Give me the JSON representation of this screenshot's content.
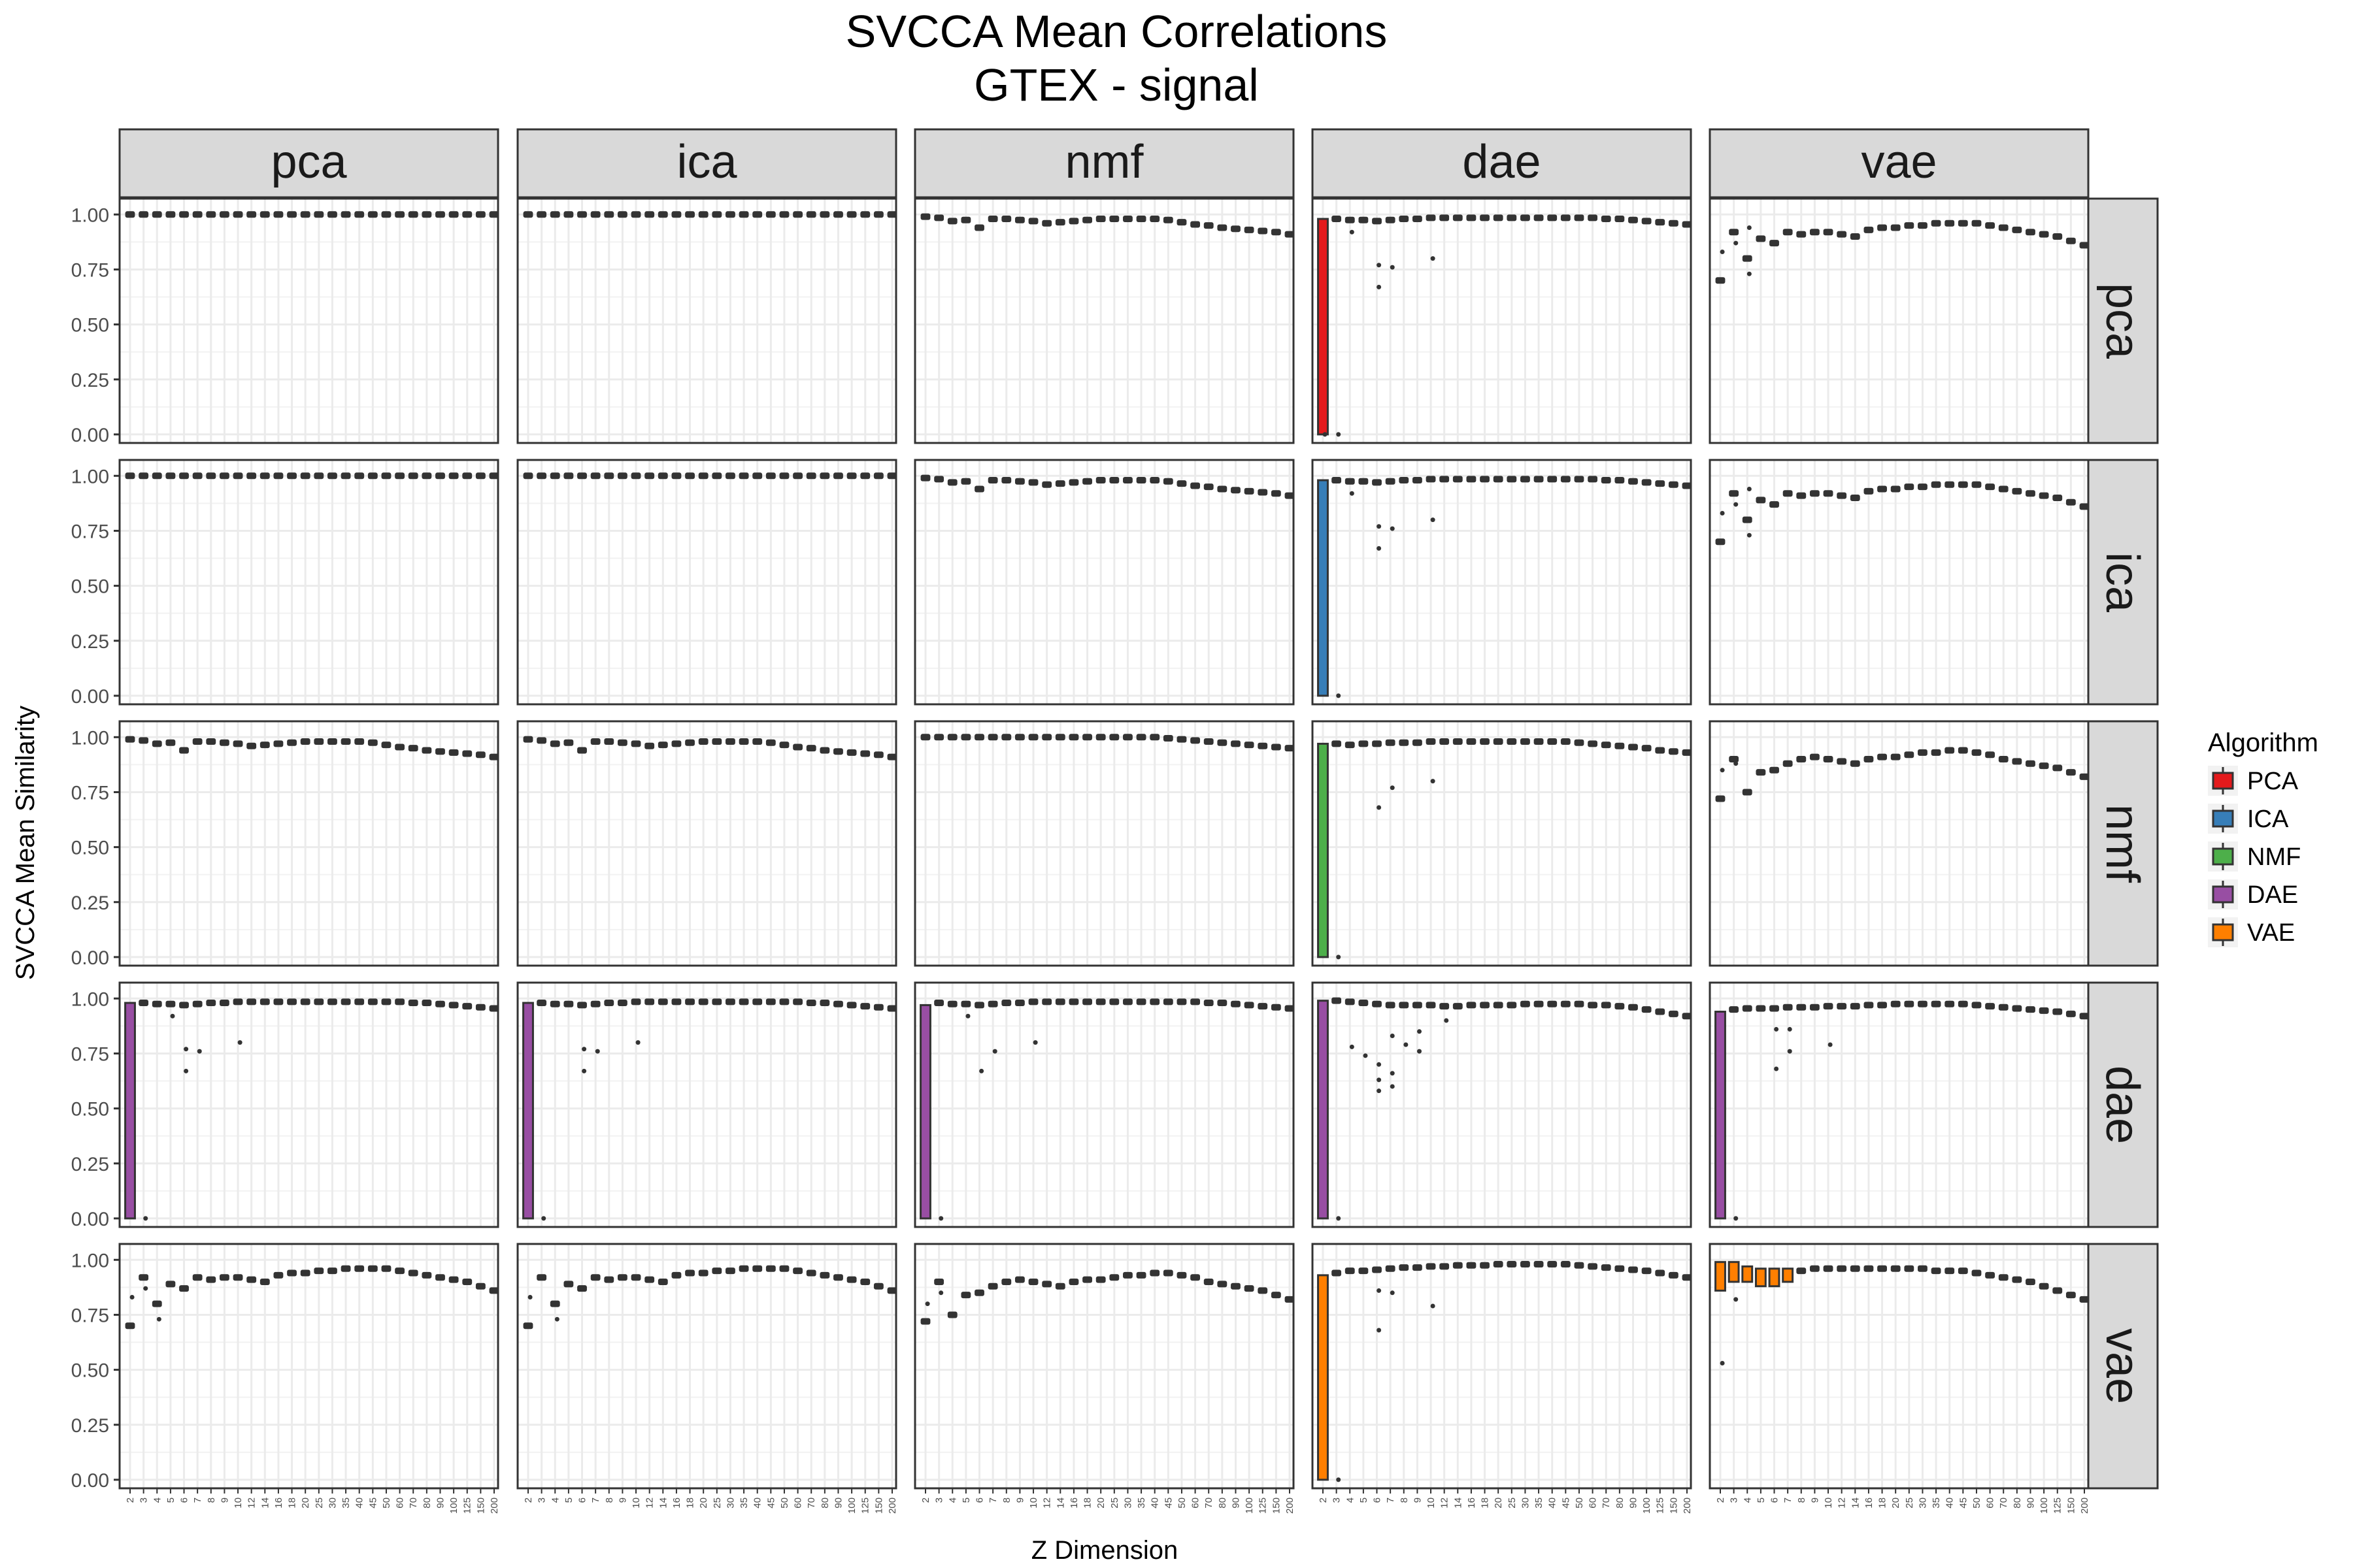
{
  "chart_data": {
    "type": "boxplot-facet-grid",
    "title": "SVCCA Mean Correlations",
    "subtitle": "GTEX - signal",
    "xlabel": "Z Dimension",
    "ylabel": "SVCCA Mean Similarity",
    "ylim": [
      0,
      1.0
    ],
    "y_ticks": [
      "0.00",
      "0.25",
      "0.50",
      "0.75",
      "1.00"
    ],
    "x_categories": [
      "2",
      "3",
      "4",
      "5",
      "6",
      "7",
      "8",
      "9",
      "10",
      "12",
      "14",
      "16",
      "18",
      "20",
      "25",
      "30",
      "35",
      "40",
      "45",
      "50",
      "60",
      "70",
      "80",
      "90",
      "100",
      "125",
      "150",
      "200"
    ],
    "facet_columns": [
      "pca",
      "ica",
      "nmf",
      "dae",
      "vae"
    ],
    "facet_rows": [
      "pca",
      "ica",
      "nmf",
      "dae",
      "vae"
    ],
    "grid": true,
    "legend": {
      "title": "Algorithm",
      "position": "right",
      "items": [
        {
          "label": "PCA",
          "color": "#E41A1C"
        },
        {
          "label": "ICA",
          "color": "#377EB8"
        },
        {
          "label": "NMF",
          "color": "#4DAF4A"
        },
        {
          "label": "DAE",
          "color": "#984EA3"
        },
        {
          "label": "VAE",
          "color": "#FF7F00"
        }
      ]
    },
    "profiles": {
      "flat": [
        1.0,
        1.0,
        1.0,
        1.0,
        1.0,
        1.0,
        1.0,
        1.0,
        1.0,
        1.0,
        1.0,
        1.0,
        1.0,
        1.0,
        1.0,
        1.0,
        1.0,
        1.0,
        1.0,
        1.0,
        1.0,
        1.0,
        1.0,
        1.0,
        1.0,
        1.0,
        1.0,
        1.0
      ],
      "nmf_linear": [
        0.99,
        0.985,
        0.97,
        0.975,
        0.94,
        0.98,
        0.98,
        0.975,
        0.97,
        0.96,
        0.965,
        0.97,
        0.975,
        0.98,
        0.98,
        0.98,
        0.98,
        0.98,
        0.975,
        0.965,
        0.955,
        0.95,
        0.94,
        0.935,
        0.93,
        0.925,
        0.92,
        0.91
      ],
      "nmf_nmf": [
        1.0,
        1.0,
        1.0,
        1.0,
        1.0,
        1.0,
        1.0,
        1.0,
        1.0,
        1.0,
        1.0,
        1.0,
        1.0,
        1.0,
        1.0,
        1.0,
        1.0,
        1.0,
        0.995,
        0.99,
        0.985,
        0.98,
        0.975,
        0.97,
        0.965,
        0.96,
        0.955,
        0.95
      ],
      "dae_cross": [
        0.98,
        0.98,
        0.975,
        0.975,
        0.97,
        0.975,
        0.98,
        0.98,
        0.985,
        0.985,
        0.985,
        0.985,
        0.985,
        0.985,
        0.985,
        0.985,
        0.985,
        0.985,
        0.985,
        0.985,
        0.985,
        0.98,
        0.98,
        0.975,
        0.97,
        0.965,
        0.96,
        0.955
      ],
      "dae_nmf": [
        0.97,
        0.97,
        0.965,
        0.97,
        0.97,
        0.975,
        0.975,
        0.975,
        0.98,
        0.98,
        0.98,
        0.98,
        0.98,
        0.98,
        0.98,
        0.98,
        0.98,
        0.98,
        0.98,
        0.975,
        0.97,
        0.965,
        0.96,
        0.955,
        0.95,
        0.94,
        0.935,
        0.93
      ],
      "dae_dae": [
        0.99,
        0.99,
        0.985,
        0.98,
        0.975,
        0.97,
        0.97,
        0.97,
        0.97,
        0.965,
        0.965,
        0.97,
        0.97,
        0.97,
        0.97,
        0.975,
        0.975,
        0.975,
        0.975,
        0.975,
        0.97,
        0.97,
        0.965,
        0.96,
        0.95,
        0.94,
        0.93,
        0.92
      ],
      "dae_vae": [
        0.94,
        0.95,
        0.955,
        0.955,
        0.955,
        0.96,
        0.96,
        0.96,
        0.965,
        0.965,
        0.965,
        0.97,
        0.97,
        0.975,
        0.975,
        0.975,
        0.975,
        0.975,
        0.975,
        0.97,
        0.965,
        0.96,
        0.955,
        0.95,
        0.945,
        0.94,
        0.93,
        0.92
      ],
      "vae_linear": [
        0.7,
        0.92,
        0.8,
        0.89,
        0.87,
        0.92,
        0.91,
        0.92,
        0.92,
        0.91,
        0.9,
        0.93,
        0.94,
        0.94,
        0.95,
        0.95,
        0.96,
        0.96,
        0.96,
        0.96,
        0.95,
        0.94,
        0.93,
        0.92,
        0.91,
        0.9,
        0.88,
        0.86
      ],
      "vae_nmf": [
        0.72,
        0.9,
        0.75,
        0.84,
        0.85,
        0.88,
        0.9,
        0.91,
        0.9,
        0.89,
        0.88,
        0.9,
        0.91,
        0.91,
        0.92,
        0.93,
        0.93,
        0.94,
        0.94,
        0.93,
        0.92,
        0.9,
        0.89,
        0.88,
        0.87,
        0.86,
        0.84,
        0.82
      ],
      "vae_dae": [
        0.93,
        0.94,
        0.95,
        0.95,
        0.955,
        0.96,
        0.965,
        0.965,
        0.97,
        0.97,
        0.975,
        0.975,
        0.975,
        0.98,
        0.98,
        0.98,
        0.98,
        0.98,
        0.98,
        0.975,
        0.97,
        0.965,
        0.96,
        0.955,
        0.95,
        0.94,
        0.93,
        0.92
      ],
      "vae_vae": [
        0.92,
        0.98,
        0.96,
        0.95,
        0.93,
        0.94,
        0.95,
        0.96,
        0.96,
        0.96,
        0.96,
        0.96,
        0.96,
        0.96,
        0.96,
        0.96,
        0.95,
        0.95,
        0.95,
        0.94,
        0.93,
        0.92,
        0.91,
        0.9,
        0.88,
        0.86,
        0.84,
        0.82
      ]
    },
    "panels": [
      [
        "flat",
        "flat",
        "nmf_linear",
        "dae_cross",
        "vae_linear"
      ],
      [
        "flat",
        "flat",
        "nmf_linear",
        "dae_cross",
        "vae_linear"
      ],
      [
        "nmf_linear",
        "nmf_linear",
        "nmf_nmf",
        "dae_nmf",
        "vae_nmf"
      ],
      [
        "dae_cross",
        "dae_cross",
        "dae_cross",
        "dae_dae",
        "dae_vae"
      ],
      [
        "vae_linear",
        "vae_linear",
        "vae_nmf",
        "vae_dae",
        "vae_vae"
      ]
    ],
    "colored_boxes": [
      {
        "row": 0,
        "col": 3,
        "x": "2",
        "low": 0.0,
        "high": 0.98,
        "algorithm": "PCA"
      },
      {
        "row": 1,
        "col": 3,
        "x": "2",
        "low": 0.0,
        "high": 0.98,
        "algorithm": "ICA"
      },
      {
        "row": 2,
        "col": 3,
        "x": "2",
        "low": 0.0,
        "high": 0.97,
        "algorithm": "NMF"
      },
      {
        "row": 3,
        "col": 0,
        "x": "2",
        "low": 0.0,
        "high": 0.98,
        "algorithm": "DAE"
      },
      {
        "row": 3,
        "col": 1,
        "x": "2",
        "low": 0.0,
        "high": 0.98,
        "algorithm": "DAE"
      },
      {
        "row": 3,
        "col": 2,
        "x": "2",
        "low": 0.0,
        "high": 0.97,
        "algorithm": "DAE"
      },
      {
        "row": 3,
        "col": 3,
        "x": "2",
        "low": 0.0,
        "high": 0.99,
        "algorithm": "DAE"
      },
      {
        "row": 3,
        "col": 4,
        "x": "2",
        "low": 0.0,
        "high": 0.94,
        "algorithm": "DAE"
      },
      {
        "row": 4,
        "col": 3,
        "x": "2",
        "low": 0.0,
        "high": 0.93,
        "algorithm": "VAE"
      },
      {
        "row": 4,
        "col": 4,
        "x": "2",
        "low": 0.86,
        "high": 0.99,
        "algorithm": "VAE"
      },
      {
        "row": 4,
        "col": 4,
        "x": "3",
        "low": 0.9,
        "high": 0.99,
        "algorithm": "VAE"
      },
      {
        "row": 4,
        "col": 4,
        "x": "4",
        "low": 0.9,
        "high": 0.97,
        "algorithm": "VAE"
      },
      {
        "row": 4,
        "col": 4,
        "x": "5",
        "low": 0.88,
        "high": 0.96,
        "algorithm": "VAE"
      },
      {
        "row": 4,
        "col": 4,
        "x": "6",
        "low": 0.88,
        "high": 0.96,
        "algorithm": "VAE"
      },
      {
        "row": 4,
        "col": 4,
        "x": "7",
        "low": 0.9,
        "high": 0.96,
        "algorithm": "VAE"
      }
    ],
    "outliers": [
      {
        "row": 0,
        "col": 3,
        "x": "2",
        "y": 0.0
      },
      {
        "row": 0,
        "col": 3,
        "x": "3",
        "y": 0.0
      },
      {
        "row": 0,
        "col": 3,
        "x": "4",
        "y": 0.92
      },
      {
        "row": 0,
        "col": 3,
        "x": "6",
        "y": 0.67
      },
      {
        "row": 0,
        "col": 3,
        "x": "6",
        "y": 0.77
      },
      {
        "row": 0,
        "col": 3,
        "x": "7",
        "y": 0.76
      },
      {
        "row": 0,
        "col": 3,
        "x": "10",
        "y": 0.8
      },
      {
        "row": 1,
        "col": 3,
        "x": "3",
        "y": 0.0
      },
      {
        "row": 1,
        "col": 3,
        "x": "4",
        "y": 0.92
      },
      {
        "row": 1,
        "col": 3,
        "x": "6",
        "y": 0.67
      },
      {
        "row": 1,
        "col": 3,
        "x": "6",
        "y": 0.77
      },
      {
        "row": 1,
        "col": 3,
        "x": "7",
        "y": 0.76
      },
      {
        "row": 1,
        "col": 3,
        "x": "10",
        "y": 0.8
      },
      {
        "row": 2,
        "col": 3,
        "x": "3",
        "y": 0.0
      },
      {
        "row": 2,
        "col": 3,
        "x": "6",
        "y": 0.68
      },
      {
        "row": 2,
        "col": 3,
        "x": "7",
        "y": 0.77
      },
      {
        "row": 2,
        "col": 3,
        "x": "10",
        "y": 0.8
      },
      {
        "row": 3,
        "col": 0,
        "x": "3",
        "y": 0.0
      },
      {
        "row": 3,
        "col": 0,
        "x": "5",
        "y": 0.92
      },
      {
        "row": 3,
        "col": 0,
        "x": "6",
        "y": 0.67
      },
      {
        "row": 3,
        "col": 0,
        "x": "6",
        "y": 0.77
      },
      {
        "row": 3,
        "col": 0,
        "x": "7",
        "y": 0.76
      },
      {
        "row": 3,
        "col": 0,
        "x": "10",
        "y": 0.8
      },
      {
        "row": 3,
        "col": 1,
        "x": "3",
        "y": 0.0
      },
      {
        "row": 3,
        "col": 1,
        "x": "6",
        "y": 0.67
      },
      {
        "row": 3,
        "col": 1,
        "x": "6",
        "y": 0.77
      },
      {
        "row": 3,
        "col": 1,
        "x": "7",
        "y": 0.76
      },
      {
        "row": 3,
        "col": 1,
        "x": "10",
        "y": 0.8
      },
      {
        "row": 3,
        "col": 2,
        "x": "3",
        "y": 0.0
      },
      {
        "row": 3,
        "col": 2,
        "x": "5",
        "y": 0.92
      },
      {
        "row": 3,
        "col": 2,
        "x": "6",
        "y": 0.67
      },
      {
        "row": 3,
        "col": 2,
        "x": "7",
        "y": 0.76
      },
      {
        "row": 3,
        "col": 2,
        "x": "10",
        "y": 0.8
      },
      {
        "row": 3,
        "col": 3,
        "x": "3",
        "y": 0.0
      },
      {
        "row": 3,
        "col": 3,
        "x": "4",
        "y": 0.78
      },
      {
        "row": 3,
        "col": 3,
        "x": "5",
        "y": 0.74
      },
      {
        "row": 3,
        "col": 3,
        "x": "6",
        "y": 0.58
      },
      {
        "row": 3,
        "col": 3,
        "x": "6",
        "y": 0.63
      },
      {
        "row": 3,
        "col": 3,
        "x": "6",
        "y": 0.7
      },
      {
        "row": 3,
        "col": 3,
        "x": "7",
        "y": 0.6
      },
      {
        "row": 3,
        "col": 3,
        "x": "7",
        "y": 0.66
      },
      {
        "row": 3,
        "col": 3,
        "x": "7",
        "y": 0.83
      },
      {
        "row": 3,
        "col": 3,
        "x": "8",
        "y": 0.79
      },
      {
        "row": 3,
        "col": 3,
        "x": "9",
        "y": 0.76
      },
      {
        "row": 3,
        "col": 3,
        "x": "9",
        "y": 0.85
      },
      {
        "row": 3,
        "col": 3,
        "x": "12",
        "y": 0.9
      },
      {
        "row": 3,
        "col": 4,
        "x": "3",
        "y": 0.0
      },
      {
        "row": 3,
        "col": 4,
        "x": "6",
        "y": 0.68
      },
      {
        "row": 3,
        "col": 4,
        "x": "6",
        "y": 0.86
      },
      {
        "row": 3,
        "col": 4,
        "x": "7",
        "y": 0.76
      },
      {
        "row": 3,
        "col": 4,
        "x": "7",
        "y": 0.86
      },
      {
        "row": 3,
        "col": 4,
        "x": "10",
        "y": 0.79
      },
      {
        "row": 4,
        "col": 3,
        "x": "3",
        "y": 0.0
      },
      {
        "row": 4,
        "col": 3,
        "x": "6",
        "y": 0.68
      },
      {
        "row": 4,
        "col": 3,
        "x": "6",
        "y": 0.86
      },
      {
        "row": 4,
        "col": 3,
        "x": "7",
        "y": 0.85
      },
      {
        "row": 4,
        "col": 3,
        "x": "10",
        "y": 0.79
      },
      {
        "row": 4,
        "col": 4,
        "x": "2",
        "y": 0.53
      },
      {
        "row": 4,
        "col": 4,
        "x": "3",
        "y": 0.82
      },
      {
        "row": 0,
        "col": 4,
        "x": "2",
        "y": 0.83
      },
      {
        "row": 0,
        "col": 4,
        "x": "3",
        "y": 0.87
      },
      {
        "row": 0,
        "col": 4,
        "x": "4",
        "y": 0.73
      },
      {
        "row": 0,
        "col": 4,
        "x": "4",
        "y": 0.94
      },
      {
        "row": 1,
        "col": 4,
        "x": "2",
        "y": 0.83
      },
      {
        "row": 1,
        "col": 4,
        "x": "3",
        "y": 0.87
      },
      {
        "row": 1,
        "col": 4,
        "x": "4",
        "y": 0.73
      },
      {
        "row": 1,
        "col": 4,
        "x": "4",
        "y": 0.94
      },
      {
        "row": 4,
        "col": 0,
        "x": "2",
        "y": 0.83
      },
      {
        "row": 4,
        "col": 0,
        "x": "3",
        "y": 0.87
      },
      {
        "row": 4,
        "col": 0,
        "x": "4",
        "y": 0.73
      },
      {
        "row": 4,
        "col": 1,
        "x": "2",
        "y": 0.83
      },
      {
        "row": 4,
        "col": 1,
        "x": "4",
        "y": 0.73
      },
      {
        "row": 2,
        "col": 4,
        "x": "2",
        "y": 0.85
      },
      {
        "row": 2,
        "col": 4,
        "x": "3",
        "y": 0.88
      },
      {
        "row": 4,
        "col": 2,
        "x": "2",
        "y": 0.8
      },
      {
        "row": 4,
        "col": 2,
        "x": "3",
        "y": 0.85
      }
    ]
  }
}
